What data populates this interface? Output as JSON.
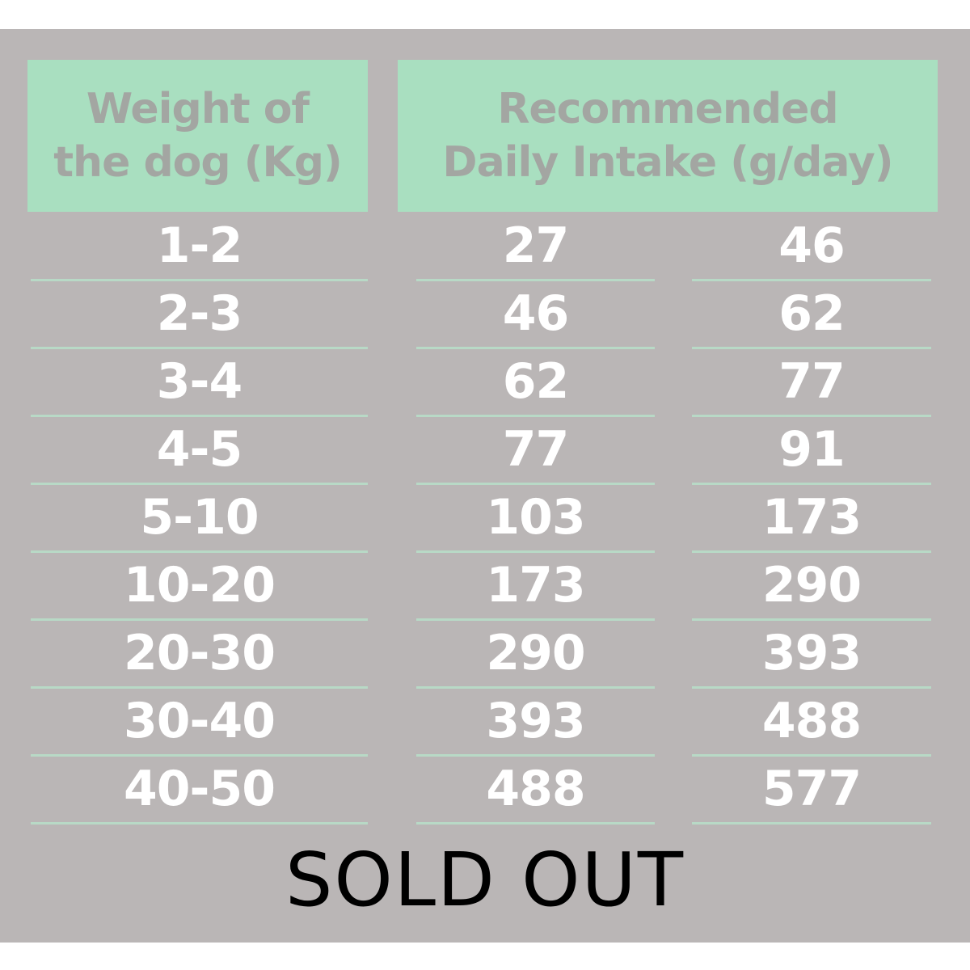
{
  "headers": {
    "weight": [
      "Weight of",
      "the dog (Kg)"
    ],
    "intake": [
      "Recommended",
      "Daily Intake (g/day)"
    ]
  },
  "rows": [
    {
      "weight": "1-2",
      "min": "27",
      "max": "46"
    },
    {
      "weight": "2-3",
      "min": "46",
      "max": "62"
    },
    {
      "weight": "3-4",
      "min": "62",
      "max": "77"
    },
    {
      "weight": "4-5",
      "min": "77",
      "max": "91"
    },
    {
      "weight": "5-10",
      "min": "103",
      "max": "173"
    },
    {
      "weight": "10-20",
      "min": "173",
      "max": "290"
    },
    {
      "weight": "20-30",
      "min": "290",
      "max": "393"
    },
    {
      "weight": "30-40",
      "min": "393",
      "max": "488"
    },
    {
      "weight": "40-50",
      "min": "488",
      "max": "577"
    }
  ],
  "overlay": "SOLD OUT",
  "colors": {
    "background": "#bab6b6",
    "header": "#a9dfc0",
    "divider": "#b8d9c6"
  }
}
